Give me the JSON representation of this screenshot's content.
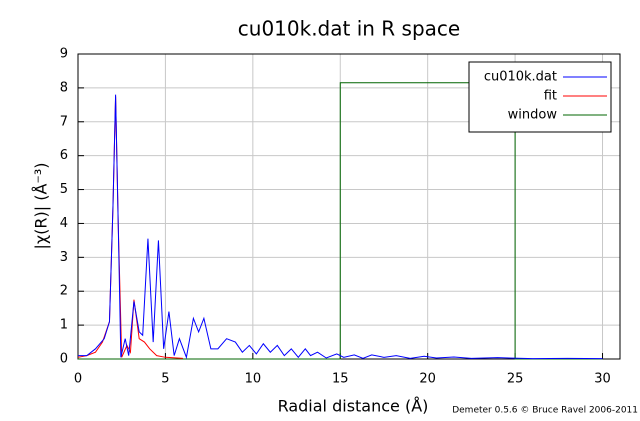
{
  "chart_data": {
    "type": "line",
    "title": "cu010k.dat in R space",
    "xlabel": "Radial distance    (Å)",
    "ylabel": "|χ(R)|    (Å⁻³)",
    "footer": "Demeter 0.5.6 © Bruce Ravel 2006-2011",
    "xlim": [
      0,
      31
    ],
    "ylim": [
      0,
      9
    ],
    "xticks": [
      0,
      5,
      10,
      15,
      20,
      25,
      30
    ],
    "yticks": [
      0,
      1,
      2,
      3,
      4,
      5,
      6,
      7,
      8,
      9
    ],
    "grid": true,
    "legend": "upper right",
    "series": [
      {
        "name": "cu010k.dat",
        "color": "#0000ff",
        "x": [
          0,
          0.5,
          1.0,
          1.5,
          1.8,
          2.0,
          2.15,
          2.3,
          2.45,
          2.7,
          2.9,
          3.2,
          3.5,
          3.7,
          4.0,
          4.3,
          4.6,
          4.9,
          5.2,
          5.5,
          5.8,
          6.2,
          6.6,
          6.9,
          7.2,
          7.6,
          8.0,
          8.5,
          9.0,
          9.4,
          9.8,
          10.2,
          10.6,
          11.0,
          11.4,
          11.8,
          12.2,
          12.6,
          13.0,
          13.3,
          13.7,
          14.2,
          14.8,
          15.2,
          15.8,
          16.3,
          16.8,
          17.5,
          18.2,
          19.0,
          19.8,
          20.5,
          21.5,
          22.5,
          24.0,
          26.0,
          28.0,
          30.0
        ],
        "values": [
          0.1,
          0.1,
          0.3,
          0.6,
          1.1,
          4.5,
          7.8,
          4.0,
          0.05,
          0.6,
          0.1,
          1.7,
          0.8,
          0.7,
          3.55,
          0.5,
          3.5,
          0.3,
          1.4,
          0.1,
          0.6,
          0.05,
          1.2,
          0.8,
          1.2,
          0.3,
          0.3,
          0.6,
          0.5,
          0.2,
          0.4,
          0.15,
          0.45,
          0.2,
          0.4,
          0.1,
          0.3,
          0.05,
          0.3,
          0.1,
          0.2,
          0.03,
          0.15,
          0.05,
          0.12,
          0.02,
          0.12,
          0.05,
          0.1,
          0.02,
          0.08,
          0.03,
          0.06,
          0.02,
          0.04,
          0.01,
          0.02,
          0.01
        ]
      },
      {
        "name": "fit",
        "color": "#ff0000",
        "x": [
          0,
          0.5,
          1.0,
          1.4,
          1.8,
          2.0,
          2.15,
          2.3,
          2.5,
          2.8,
          3.0,
          3.2,
          3.5,
          3.8,
          4.1,
          4.5,
          5.0,
          6.0
        ],
        "values": [
          0.05,
          0.1,
          0.2,
          0.5,
          1.1,
          4.5,
          7.75,
          4.0,
          0.05,
          0.4,
          0.2,
          1.75,
          0.6,
          0.5,
          0.3,
          0.1,
          0.05,
          0.02
        ]
      },
      {
        "name": "window",
        "color": "#006400",
        "x": [
          0,
          15,
          15,
          25,
          25,
          30
        ],
        "values": [
          0,
          0,
          8.15,
          8.15,
          0,
          0
        ]
      }
    ]
  }
}
